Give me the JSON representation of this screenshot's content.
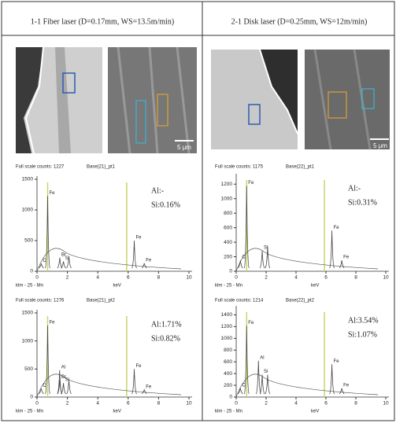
{
  "columns": [
    {
      "heading": "1-1 Fiber laser (D=0.17mm, WS=13.5m/min)",
      "scale_bar": "5 μm",
      "spectra": [
        {
          "full_scale": "Full scale counts: 1227",
          "sample": "Base(21)_pt1",
          "footer": "klm - 25 - Mn",
          "x_label": "keV",
          "xlim": [
            0,
            10
          ],
          "xticks": [
            0,
            2,
            4,
            6,
            8,
            10
          ],
          "ylim": [
            0,
            1500
          ],
          "yticks": [
            0,
            500,
            1000,
            1500
          ],
          "annotations": [
            "Al:-",
            "Si:0.16%"
          ],
          "markers": [
            0.7,
            5.9
          ],
          "peaks": [
            {
              "label": "C",
              "kev": 0.28,
              "counts": 120
            },
            {
              "label": "Fe",
              "kev": 0.7,
              "counts": 1227
            },
            {
              "label": "Br",
              "kev": 1.5,
              "counts": 220
            },
            {
              "label": "Si",
              "kev": 1.74,
              "counts": 160
            },
            {
              "label": null,
              "kev": 2.1,
              "counts": 250
            },
            {
              "label": "Fe",
              "kev": 6.4,
              "counts": 500
            },
            {
              "label": "Fe",
              "kev": 7.06,
              "counts": 130
            }
          ]
        },
        {
          "full_scale": "Full scale counts: 1276",
          "sample": "Base(21)_pt2",
          "footer": "klm - 25 - Mn",
          "x_label": "keV",
          "xlim": [
            0,
            10
          ],
          "xticks": [
            0,
            2,
            4,
            6,
            8,
            10
          ],
          "ylim": [
            0,
            1500
          ],
          "yticks": [
            0,
            500,
            1000,
            1500
          ],
          "annotations": [
            "Al:1.71%",
            "Si:0.82%"
          ],
          "markers": [
            0.7,
            5.9
          ],
          "peaks": [
            {
              "label": "C",
              "kev": 0.28,
              "counts": 150
            },
            {
              "label": "Fe",
              "kev": 0.7,
              "counts": 1276
            },
            {
              "label": "Al",
              "kev": 1.49,
              "counts": 480
            },
            {
              "label": "Br",
              "kev": 1.5,
              "counts": 300
            },
            {
              "label": "Si",
              "kev": 1.74,
              "counts": 250
            },
            {
              "label": null,
              "kev": 2.1,
              "counts": 300
            },
            {
              "label": "Fe",
              "kev": 6.4,
              "counts": 500
            },
            {
              "label": "Fe",
              "kev": 7.06,
              "counts": 130
            }
          ]
        }
      ]
    },
    {
      "heading": "2-1 Disk laser (D=0.25mm, WS=12m/min)",
      "scale_bar": "5 μm",
      "spectra": [
        {
          "full_scale": "Full scale counts: 1175",
          "sample": "Base(22)_pt1",
          "footer": "klm - 25 - Mn",
          "x_label": "keV",
          "xlim": [
            0,
            10
          ],
          "xticks": [
            0,
            2,
            4,
            6,
            8,
            10
          ],
          "ylim": [
            0,
            1300
          ],
          "yticks": [
            0,
            200,
            400,
            600,
            800,
            1000,
            1200
          ],
          "annotations": [
            "Al:-",
            "Si:0.31%"
          ],
          "markers": [
            0.7,
            5.9
          ],
          "peaks": [
            {
              "label": "C",
              "kev": 0.28,
              "counts": 150
            },
            {
              "label": "Fe",
              "kev": 0.7,
              "counts": 1175
            },
            {
              "label": "Si",
              "kev": 1.74,
              "counts": 280
            },
            {
              "label": null,
              "kev": 2.1,
              "counts": 350
            },
            {
              "label": "Fe",
              "kev": 6.4,
              "counts": 560
            },
            {
              "label": "Fe",
              "kev": 7.06,
              "counts": 150
            }
          ]
        },
        {
          "full_scale": "Full scale counts: 1214",
          "sample": "Base(22)_pt2",
          "footer": "klm - 25 - Mn",
          "x_label": "keV",
          "xlim": [
            0,
            10
          ],
          "xticks": [
            0,
            2,
            4,
            6,
            8,
            10
          ],
          "ylim": [
            0,
            1500
          ],
          "yticks": [
            0,
            200,
            400,
            600,
            800,
            1000,
            1200,
            1400
          ],
          "annotations": [
            "Al:3.54%",
            "Si:1.07%"
          ],
          "markers": [
            0.7,
            5.9
          ],
          "peaks": [
            {
              "label": "C",
              "kev": 0.28,
              "counts": 150
            },
            {
              "label": "Fe",
              "kev": 0.7,
              "counts": 1214
            },
            {
              "label": "Al",
              "kev": 1.49,
              "counts": 620
            },
            {
              "label": "Si",
              "kev": 1.74,
              "counts": 380
            },
            {
              "label": null,
              "kev": 2.1,
              "counts": 380
            },
            {
              "label": "Fe",
              "kev": 6.4,
              "counts": 560
            },
            {
              "label": "Fe",
              "kev": 7.06,
              "counts": 150
            }
          ]
        }
      ]
    }
  ]
}
